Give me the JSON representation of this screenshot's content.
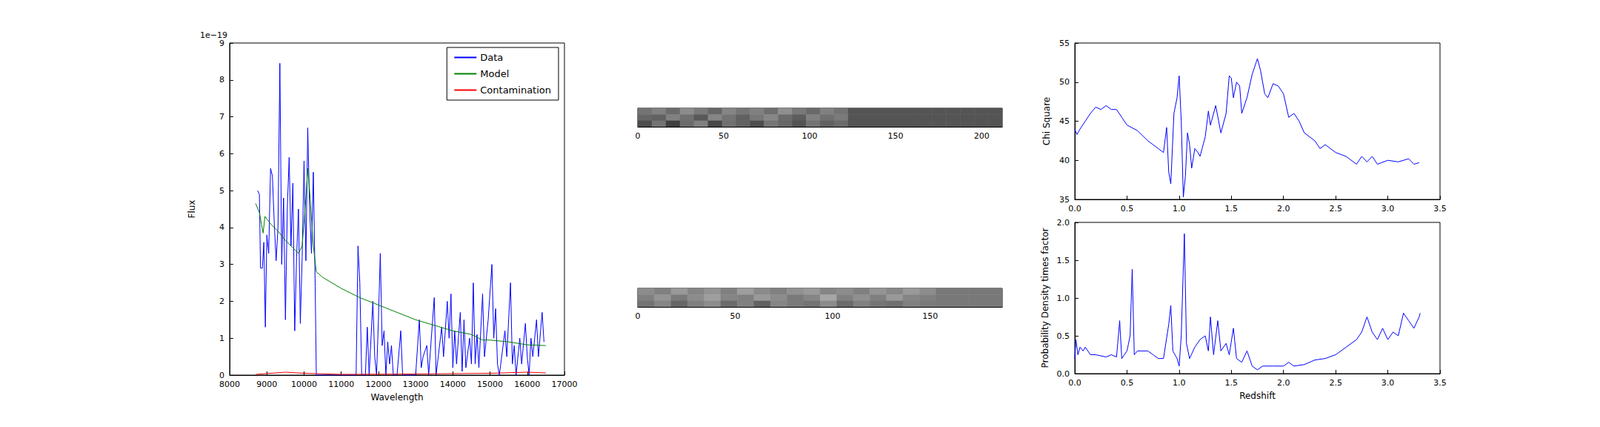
{
  "chart_data": [
    {
      "type": "line",
      "x_label": "Wavelength",
      "y_label": "Flux",
      "y_offset_text": "1e−19",
      "xlim": [
        8000,
        17000
      ],
      "xticks": [
        8000,
        9000,
        10000,
        11000,
        12000,
        13000,
        14000,
        15000,
        16000,
        17000
      ],
      "ylim": [
        0,
        9
      ],
      "yticks": [
        0,
        1,
        2,
        3,
        4,
        5,
        6,
        7,
        8,
        9
      ],
      "grid": false,
      "legend": "upper right",
      "series": [
        {
          "name": "Data",
          "color": "#0000ff",
          "x": [
            8750,
            8800,
            8830,
            8880,
            8920,
            8960,
            9000,
            9050,
            9100,
            9150,
            9200,
            9250,
            9300,
            9350,
            9400,
            9450,
            9500,
            9550,
            9600,
            9650,
            9700,
            9750,
            9800,
            9850,
            9900,
            9950,
            10000,
            10050,
            10100,
            10150,
            10200,
            10250,
            10300,
            10330,
            11400,
            11450,
            11500,
            11550,
            11650,
            11700,
            11750,
            11850,
            11900,
            11950,
            12000,
            12050,
            12100,
            12150,
            12200,
            12250,
            12300,
            12350,
            12400,
            12500,
            12600,
            12650,
            13000,
            13100,
            13150,
            13200,
            13300,
            13350,
            13500,
            13550,
            13700,
            13750,
            13850,
            13900,
            13950,
            14000,
            14050,
            14100,
            14200,
            14250,
            14300,
            14350,
            14450,
            14500,
            14550,
            14600,
            14650,
            14700,
            14800,
            14850,
            14950,
            15050,
            15100,
            15150,
            15200,
            15250,
            15400,
            15450,
            15550,
            15600,
            15650,
            15700,
            15800,
            15850,
            15950,
            16000,
            16050,
            16100,
            16150,
            16250,
            16300,
            16400,
            16450
          ],
          "values": [
            5.0,
            4.9,
            2.9,
            2.9,
            3.6,
            1.3,
            3.8,
            3.3,
            5.6,
            5.4,
            4.1,
            3.1,
            4.0,
            8.45,
            3.0,
            4.8,
            1.5,
            4.5,
            5.9,
            3.5,
            5.2,
            1.2,
            3.2,
            4.5,
            1.4,
            3.2,
            5.8,
            3.1,
            6.7,
            4.5,
            3.3,
            5.5,
            2.4,
            0,
            0,
            3.5,
            2.5,
            0,
            0,
            1.3,
            0,
            2.0,
            0.5,
            0,
            1.5,
            3.3,
            0.8,
            1.2,
            0,
            0.9,
            0.3,
            0.8,
            0,
            0,
            1.2,
            0,
            0,
            1.5,
            0.2,
            0.5,
            0.8,
            0,
            2.1,
            0,
            1.3,
            0.5,
            2.0,
            1.0,
            2.2,
            0.2,
            1.2,
            0.3,
            1.7,
            0.1,
            1.5,
            0.2,
            1.0,
            0.3,
            2.5,
            0.3,
            1.1,
            0.2,
            2.2,
            0.5,
            1.5,
            3.0,
            1.0,
            1.8,
            0.3,
            0,
            1.2,
            0.5,
            2.5,
            0.3,
            0.8,
            0,
            1.0,
            0.3,
            1.4,
            0.5,
            0,
            1.0,
            0.5,
            1.5,
            0.5,
            1.7,
            0.9
          ]
        },
        {
          "name": "Model",
          "color": "#008000",
          "x": [
            8700,
            8800,
            8900,
            8950,
            9100,
            9300,
            9500,
            9700,
            9850,
            9950,
            10050,
            10100,
            10150,
            10250,
            10330,
            10500,
            11000,
            11500,
            12000,
            12500,
            13000,
            13500,
            14000,
            14500,
            14800,
            15000,
            15500,
            16000,
            16500
          ],
          "values": [
            4.65,
            4.4,
            3.85,
            4.3,
            4.1,
            3.9,
            3.65,
            3.45,
            3.3,
            3.5,
            4.8,
            5.6,
            5.0,
            3.5,
            2.8,
            2.65,
            2.35,
            2.1,
            1.9,
            1.7,
            1.5,
            1.35,
            1.2,
            1.1,
            0.95,
            0.95,
            0.9,
            0.82,
            0.8
          ]
        },
        {
          "name": "Contamination",
          "color": "#ff0000",
          "x": [
            8700,
            9500,
            10000,
            11000,
            13000,
            15000,
            16000,
            16500
          ],
          "values": [
            0.02,
            0.08,
            0.05,
            0.02,
            0.03,
            0.05,
            0.08,
            0.06
          ]
        }
      ]
    },
    {
      "type": "heatmap",
      "xlim": [
        0,
        212
      ],
      "xticks": [
        0,
        50,
        100,
        150,
        200
      ],
      "tick_labels": "x",
      "value_range": [
        0,
        1
      ],
      "cells": [
        [
          0.45,
          0.5,
          0.42,
          0.55,
          0.48,
          0.4,
          0.52,
          0.46,
          0.5,
          0.43,
          0.56,
          0.47,
          0.41,
          0.5,
          0.45,
          0.33,
          0.33,
          0.33,
          0.33,
          0.33,
          0.33,
          0.33,
          0.33,
          0.33,
          0.33,
          0.33
        ],
        [
          0.4,
          0.38,
          0.5,
          0.44,
          0.35,
          0.52,
          0.45,
          0.38,
          0.47,
          0.53,
          0.42,
          0.36,
          0.5,
          0.44,
          0.48,
          0.33,
          0.33,
          0.33,
          0.33,
          0.33,
          0.33,
          0.33,
          0.33,
          0.33,
          0.33,
          0.33
        ],
        [
          0.3,
          0.45,
          0.25,
          0.42,
          0.5,
          0.28,
          0.44,
          0.38,
          0.3,
          0.46,
          0.4,
          0.32,
          0.45,
          0.38,
          0.42,
          0.33,
          0.33,
          0.33,
          0.33,
          0.33,
          0.33,
          0.33,
          0.33,
          0.33,
          0.33,
          0.33
        ]
      ]
    },
    {
      "type": "heatmap",
      "xlim": [
        0,
        187
      ],
      "xticks": [
        0,
        50,
        100,
        150
      ],
      "tick_labels": "x",
      "value_range": [
        0,
        1
      ],
      "cells": [
        [
          0.55,
          0.5,
          0.6,
          0.52,
          0.58,
          0.5,
          0.62,
          0.54,
          0.5,
          0.57,
          0.6,
          0.52,
          0.55,
          0.5,
          0.58,
          0.53,
          0.6,
          0.55,
          0.47,
          0.47,
          0.47,
          0.47
        ],
        [
          0.5,
          0.58,
          0.48,
          0.55,
          0.62,
          0.52,
          0.5,
          0.6,
          0.55,
          0.48,
          0.52,
          0.65,
          0.5,
          0.56,
          0.5,
          0.6,
          0.52,
          0.5,
          0.47,
          0.47,
          0.47,
          0.47
        ],
        [
          0.45,
          0.52,
          0.4,
          0.5,
          0.55,
          0.42,
          0.5,
          0.38,
          0.52,
          0.48,
          0.45,
          0.55,
          0.42,
          0.5,
          0.46,
          0.44,
          0.5,
          0.48,
          0.47,
          0.47,
          0.47,
          0.47
        ]
      ]
    },
    {
      "type": "line",
      "y_label": "Chi Square",
      "xlim": [
        0,
        3.5
      ],
      "xticks": [
        {
          "value": 0,
          "label": "0.0"
        },
        0.5,
        {
          "value": 1,
          "label": "1.0"
        },
        1.5,
        {
          "value": 2,
          "label": "2.0"
        },
        2.5,
        {
          "value": 3,
          "label": "3.0"
        },
        3.5
      ],
      "ylim": [
        35,
        55
      ],
      "yticks": [
        35,
        40,
        45,
        50,
        55
      ],
      "grid": false,
      "series": [
        {
          "color": "#0000ff",
          "x": [
            0,
            0.02,
            0.05,
            0.1,
            0.15,
            0.2,
            0.25,
            0.3,
            0.35,
            0.4,
            0.45,
            0.5,
            0.6,
            0.7,
            0.8,
            0.85,
            0.88,
            0.9,
            0.92,
            0.95,
            0.98,
            1.0,
            1.02,
            1.04,
            1.06,
            1.08,
            1.1,
            1.12,
            1.15,
            1.18,
            1.2,
            1.22,
            1.25,
            1.28,
            1.3,
            1.35,
            1.4,
            1.45,
            1.48,
            1.5,
            1.52,
            1.55,
            1.58,
            1.6,
            1.65,
            1.7,
            1.75,
            1.78,
            1.82,
            1.85,
            1.9,
            1.95,
            2.0,
            2.05,
            2.1,
            2.15,
            2.2,
            2.3,
            2.35,
            2.4,
            2.5,
            2.6,
            2.7,
            2.75,
            2.8,
            2.85,
            2.9,
            3.0,
            3.1,
            3.2,
            3.25,
            3.3
          ],
          "values": [
            44,
            43.3,
            44,
            45,
            46,
            46.8,
            46.5,
            47,
            46.5,
            46.5,
            45.5,
            44.5,
            43.8,
            42.5,
            41.5,
            41,
            44.2,
            38.5,
            37,
            46,
            48,
            50.8,
            45,
            35.3,
            38,
            43.5,
            42,
            39,
            41.5,
            41,
            40.5,
            41.5,
            43,
            46.3,
            44.5,
            47,
            43.5,
            46,
            50.8,
            50.5,
            48,
            50,
            49.5,
            46,
            48,
            51,
            53,
            51.5,
            48.5,
            48,
            49.8,
            49.5,
            48.5,
            45.5,
            46,
            45,
            43.5,
            42.5,
            41.5,
            42,
            41,
            40.5,
            39.5,
            40.5,
            39.8,
            40.5,
            39.5,
            40,
            39.8,
            40.2,
            39.5,
            39.7
          ]
        }
      ]
    },
    {
      "type": "line",
      "x_label": "Redshift",
      "y_label": "Probability Density times factor",
      "xlim": [
        0,
        3.5
      ],
      "xticks": [
        {
          "value": 0,
          "label": "0.0"
        },
        0.5,
        {
          "value": 1,
          "label": "1.0"
        },
        1.5,
        {
          "value": 2,
          "label": "2.0"
        },
        2.5,
        {
          "value": 3,
          "label": "3.0"
        },
        3.5
      ],
      "ylim": [
        0,
        2
      ],
      "yticks": [
        {
          "value": 0,
          "label": "0.0"
        },
        0.5,
        {
          "value": 1,
          "label": "1.0"
        },
        1.5,
        {
          "value": 2,
          "label": "2.0"
        }
      ],
      "grid": false,
      "series": [
        {
          "color": "#0000ff",
          "x": [
            0,
            0.01,
            0.03,
            0.05,
            0.08,
            0.1,
            0.15,
            0.2,
            0.3,
            0.35,
            0.4,
            0.43,
            0.45,
            0.5,
            0.53,
            0.55,
            0.57,
            0.6,
            0.7,
            0.75,
            0.8,
            0.85,
            0.9,
            0.92,
            0.94,
            0.98,
            1.0,
            1.02,
            1.05,
            1.07,
            1.1,
            1.15,
            1.2,
            1.25,
            1.28,
            1.3,
            1.33,
            1.37,
            1.4,
            1.45,
            1.48,
            1.52,
            1.55,
            1.6,
            1.65,
            1.7,
            1.75,
            1.8,
            1.9,
            2.0,
            2.05,
            2.1,
            2.2,
            2.3,
            2.4,
            2.5,
            2.6,
            2.7,
            2.75,
            2.8,
            2.85,
            2.9,
            2.95,
            3.0,
            3.05,
            3.1,
            3.15,
            3.2,
            3.25,
            3.3,
            3.31
          ],
          "values": [
            0.2,
            0.45,
            0.25,
            0.35,
            0.3,
            0.35,
            0.25,
            0.25,
            0.22,
            0.25,
            0.22,
            0.7,
            0.2,
            0.3,
            0.5,
            1.38,
            0.25,
            0.3,
            0.3,
            0.25,
            0.2,
            0.2,
            0.65,
            0.9,
            0.3,
            0.2,
            0.1,
            0.5,
            1.85,
            0.4,
            0.2,
            0.35,
            0.45,
            0.5,
            0.3,
            0.75,
            0.25,
            0.7,
            0.3,
            0.4,
            0.25,
            0.6,
            0.2,
            0.15,
            0.3,
            0.1,
            0.05,
            0.1,
            0.1,
            0.1,
            0.15,
            0.1,
            0.12,
            0.18,
            0.2,
            0.25,
            0.35,
            0.45,
            0.55,
            0.75,
            0.55,
            0.45,
            0.6,
            0.45,
            0.55,
            0.5,
            0.8,
            0.7,
            0.6,
            0.75,
            0.8
          ]
        }
      ]
    }
  ]
}
